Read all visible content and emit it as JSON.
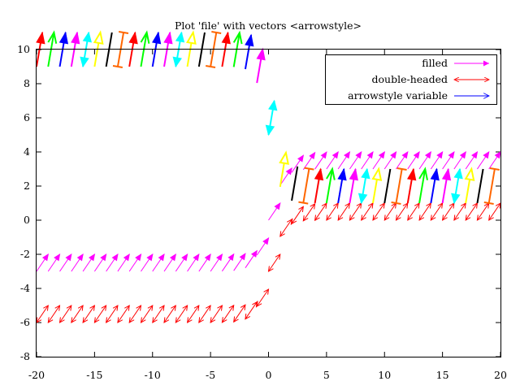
{
  "chart_data": {
    "type": "vectors",
    "title": "Plot 'file' with vectors <arrowstyle>",
    "xlabel": "",
    "ylabel": "",
    "xlim": [
      -20,
      20
    ],
    "ylim": [
      -8,
      10
    ],
    "xticks": [
      -20,
      -15,
      -10,
      -5,
      0,
      5,
      10,
      15,
      20
    ],
    "yticks": [
      -8,
      -6,
      -4,
      -2,
      0,
      2,
      4,
      6,
      8,
      10
    ],
    "legend_position": "top-right",
    "series": [
      {
        "name": "filled",
        "color": "#ff00ff",
        "style": "filled",
        "offset": [
          0,
          0
        ],
        "vector": [
          1,
          1
        ],
        "x_start": -20,
        "x_end": 19,
        "x_step": 1,
        "baseline": 0,
        "amplitude": 3,
        "steepness": 1.2
      },
      {
        "name": "double-headed",
        "color": "#ff0000",
        "style": "double",
        "offset": [
          0,
          -3
        ],
        "vector": [
          1,
          1
        ],
        "x_start": -20,
        "x_end": 19,
        "x_step": 1,
        "baseline": 0,
        "amplitude": 3,
        "steepness": 1.2
      },
      {
        "name": "arrowstyle variable",
        "color": "#0000ff",
        "style": "variable",
        "offset": [
          0,
          0
        ],
        "vector": [
          0.5,
          2
        ],
        "x_start": -20,
        "x_end": 19,
        "x_step": 1,
        "baseline": 5,
        "amplitude": -4,
        "steepness": 1,
        "style_cycle": [
          "filled-red",
          "plain-green",
          "filled-blue",
          "filled-magenta",
          "double-cyan",
          "empty-yellow",
          "none-black",
          "bar-orange"
        ]
      }
    ],
    "style_colors": {
      "filled-red": "#ff0000",
      "plain-green": "#00ff00",
      "filled-blue": "#0000ff",
      "filled-magenta": "#ff00ff",
      "double-cyan": "#00ffff",
      "empty-yellow": "#ffff00",
      "none-black": "#000000",
      "bar-orange": "#ff6600"
    }
  }
}
